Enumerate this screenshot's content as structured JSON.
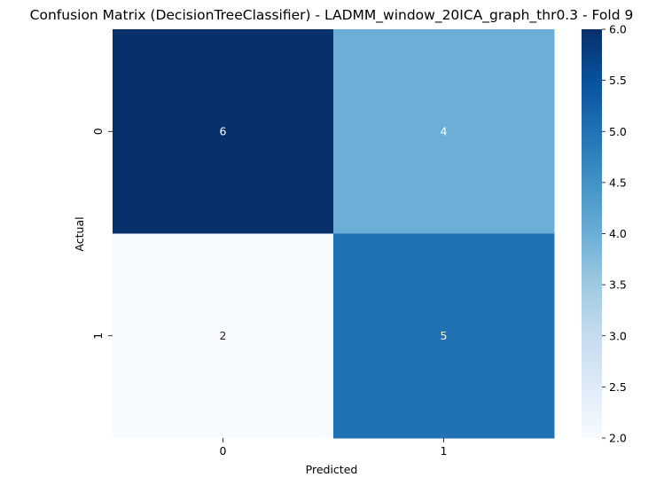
{
  "chart_data": {
    "type": "heatmap",
    "title": "Confusion Matrix (DecisionTreeClassifier) - LADMM_window_20ICA_graph_thr0.3 - Fold 9",
    "xlabel": "Predicted",
    "ylabel": "Actual",
    "x_categories": [
      "0",
      "1"
    ],
    "y_categories": [
      "0",
      "1"
    ],
    "values": [
      [
        6,
        4
      ],
      [
        2,
        5
      ]
    ],
    "colormap": "Blues",
    "colorbar": {
      "min": 2.0,
      "max": 6.0,
      "ticks": [
        "2.0",
        "2.5",
        "3.0",
        "3.5",
        "4.0",
        "4.5",
        "5.0",
        "5.5",
        "6.0"
      ]
    },
    "colors": {
      "6": "#08306b",
      "5": "#2171b5",
      "4": "#6baed6",
      "2": "#f7fbff"
    },
    "grid": false
  }
}
